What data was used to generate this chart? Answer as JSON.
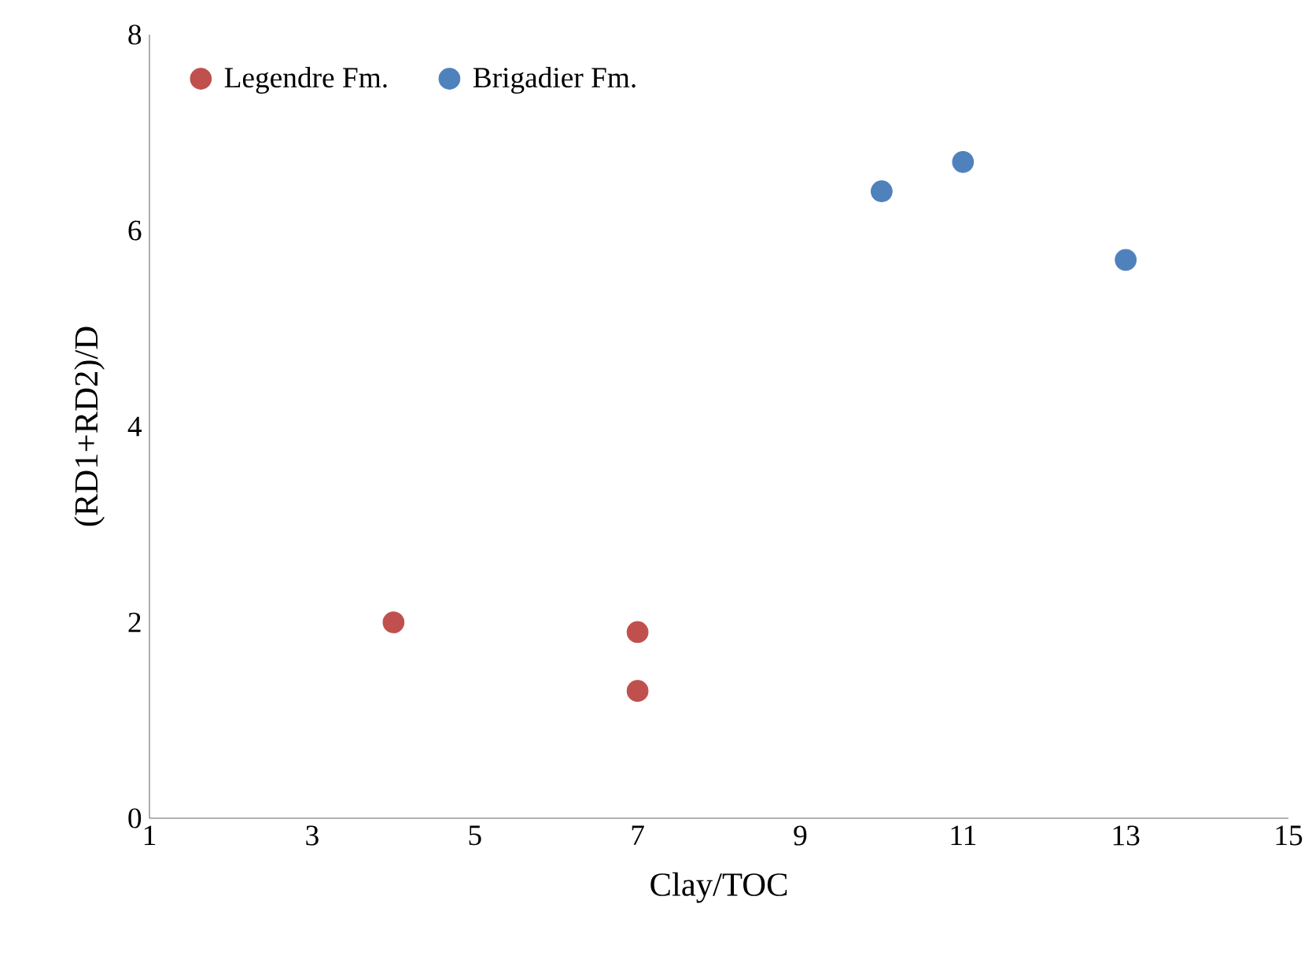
{
  "chart_data": {
    "type": "scatter",
    "xlabel": "Clay/TOC",
    "ylabel": "(RD1+RD2)/D",
    "xlim": [
      1,
      15
    ],
    "xticks": [
      1,
      3,
      5,
      7,
      9,
      11,
      13,
      15
    ],
    "ylim": [
      0,
      8
    ],
    "yticks": [
      0,
      2,
      4,
      6,
      8
    ],
    "grid": false,
    "legend": "top left",
    "marker": "circle",
    "series": [
      {
        "name": "Legendre Fm.",
        "color": "#c0504d",
        "x": [
          4,
          7,
          7
        ],
        "values": [
          2.0,
          1.9,
          1.3
        ]
      },
      {
        "name": "Brigadier Fm.",
        "color": "#4f81bd",
        "x": [
          10,
          11,
          13
        ],
        "values": [
          6.4,
          6.7,
          5.7
        ]
      }
    ]
  }
}
